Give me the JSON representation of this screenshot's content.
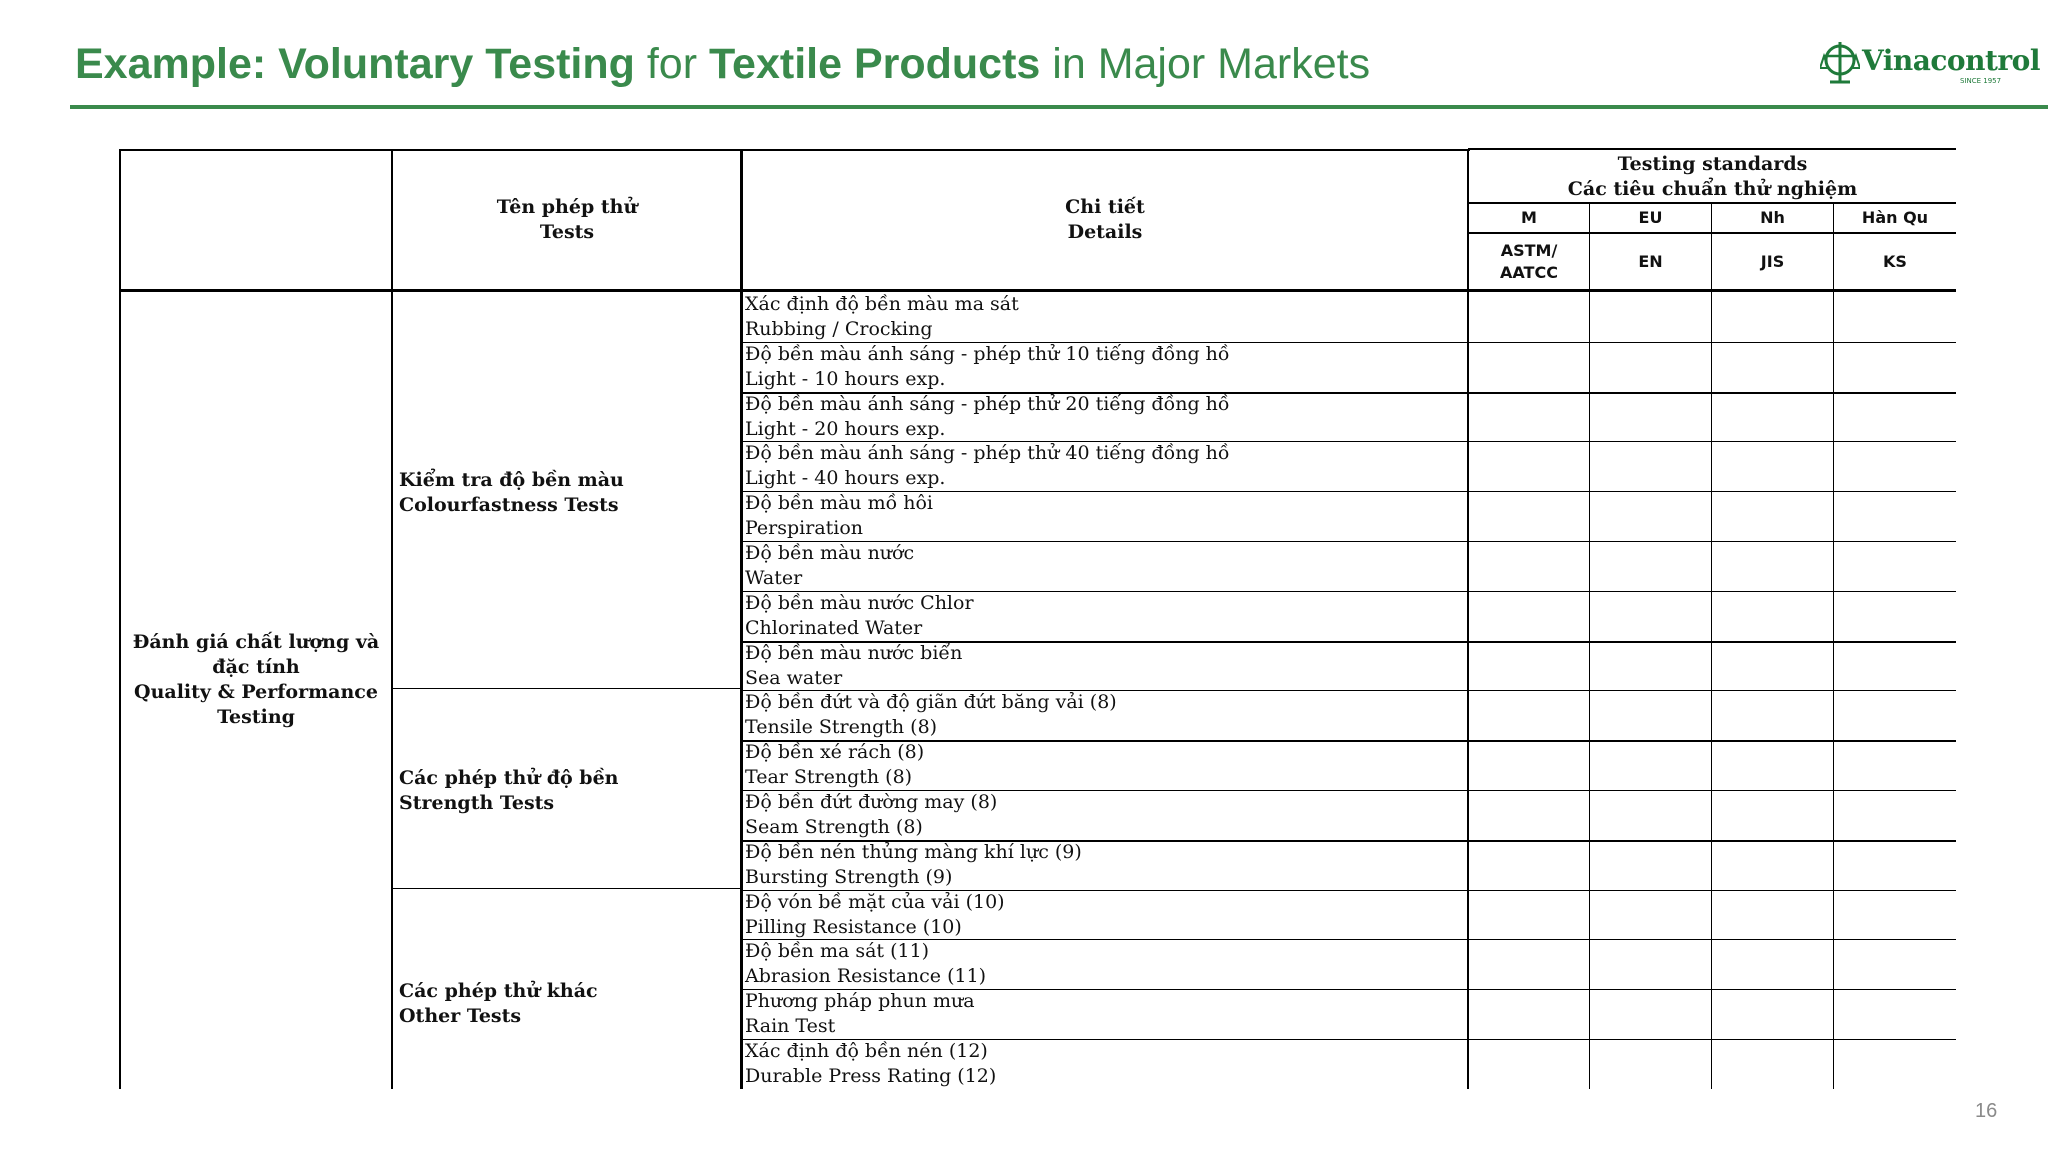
{
  "slide": {
    "title_parts": [
      {
        "text": "Example: Voluntary Testing",
        "bold": true
      },
      {
        "text": " for ",
        "bold": false
      },
      {
        "text": "Textile Products",
        "bold": true
      },
      {
        "text": " in Major Markets",
        "bold": false
      }
    ],
    "logo_text": "Vinacontrol",
    "logo_sub": "SINCE 1957",
    "page_number": "16"
  },
  "colors": {
    "accent_green": "#3a8a4c",
    "logo_green": "#1f7a3a"
  },
  "table": {
    "header": {
      "tests": [
        "Tên phép thử",
        "Tests"
      ],
      "details": [
        "Chi tiết",
        "Details"
      ],
      "standards": [
        "Testing standards",
        "Các tiêu chuẩn thử nghiệm"
      ],
      "markets": [
        "M",
        "EU",
        "Nh",
        "Hàn Qu"
      ],
      "codes": [
        [
          "ASTM/",
          "AATCC"
        ],
        [
          "EN"
        ],
        [
          "JIS"
        ],
        [
          "KS"
        ]
      ]
    },
    "category": [
      "Đánh giá chất lượng và",
      "đặc tính",
      "Quality & Performance",
      "Testing"
    ],
    "groups": [
      {
        "lines": [
          "Kiểm tra độ bền màu",
          "Colourfastness Tests"
        ]
      },
      {
        "lines": [
          "Các phép thử độ bền",
          "Strength Tests"
        ]
      },
      {
        "lines": [
          "Các phép thử khác",
          "Other Tests"
        ]
      }
    ],
    "rows": [
      [
        "Xác định độ bền màu ma sát",
        "Rubbing / Crocking"
      ],
      [
        "Độ bền màu ánh sáng - phép thử 10 tiếng đồng hồ",
        "Light - 10 hours exp."
      ],
      [
        "Độ bền màu ánh sáng - phép thử 20 tiếng đồng hồ",
        "Light - 20 hours exp."
      ],
      [
        "Độ bền màu ánh sáng - phép thử 40 tiếng đồng hồ",
        "Light - 40 hours exp."
      ],
      [
        "Độ  bền màu mồ hôi",
        "Perspiration"
      ],
      [
        "Độ bền màu nước",
        "Water"
      ],
      [
        "Độ bền màu nước Chlor",
        "Chlorinated Water"
      ],
      [
        "Độ bền màu nước biển",
        "Sea water"
      ],
      [
        "Độ bền đứt và độ giãn đứt băng vải (8)",
        "Tensile Strength (8)"
      ],
      [
        "Độ bền xé rách (8)",
        "Tear Strength (8)"
      ],
      [
        "Độ bền đứt đường may (8)",
        "Seam Strength (8)"
      ],
      [
        "Độ bền nén thủng màng khí lực (9)",
        "Bursting Strength (9)"
      ],
      [
        "Độ vón bề mặt của vải (10)",
        "Pilling Resistance (10)"
      ],
      [
        "Độ bền ma sát (11)",
        "Abrasion Resistance (11)"
      ],
      [
        "Phương pháp phun mưa",
        "Rain Test"
      ],
      [
        "Xác định độ bền nén (12)",
        "Durable Press Rating (12)"
      ]
    ]
  }
}
